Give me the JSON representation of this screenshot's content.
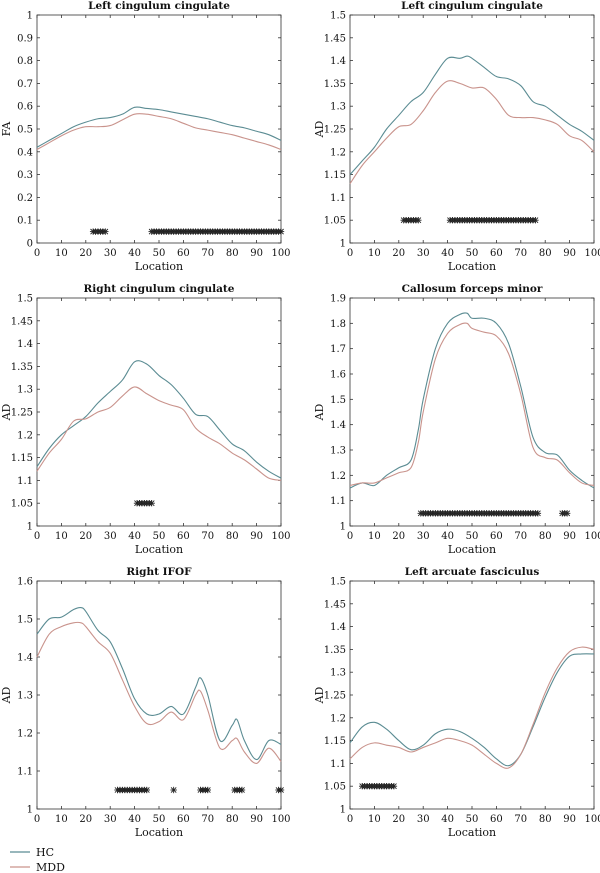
{
  "legend": [
    {
      "name": "HC",
      "color": "#5b8c93"
    },
    {
      "name": "MDD",
      "color": "#c9938c"
    }
  ],
  "chart_data": [
    {
      "type": "line",
      "title": "Left cingulum cingulate",
      "xlabel": "Location",
      "ylabel": "FA",
      "xlim": [
        0,
        100
      ],
      "ylim": [
        0,
        1
      ],
      "xticks": [
        0,
        10,
        20,
        30,
        40,
        50,
        60,
        70,
        80,
        90,
        100
      ],
      "yticks": [
        0,
        0.1,
        0.2,
        0.3,
        0.4,
        0.5,
        0.6,
        0.7,
        0.8,
        0.9,
        1
      ],
      "ytick_labels": [
        "0",
        "0.1",
        "0.2",
        "0.3",
        "0.4",
        "0.5",
        "0.6",
        "0.7",
        "0.8",
        "0.9",
        "1"
      ],
      "series": [
        {
          "name": "HC",
          "x": [
            0,
            5,
            10,
            15,
            20,
            25,
            30,
            35,
            40,
            45,
            50,
            55,
            60,
            65,
            70,
            75,
            80,
            85,
            90,
            95,
            100
          ],
          "y": [
            0.42,
            0.45,
            0.48,
            0.51,
            0.53,
            0.545,
            0.55,
            0.565,
            0.595,
            0.59,
            0.585,
            0.575,
            0.565,
            0.555,
            0.545,
            0.53,
            0.515,
            0.505,
            0.49,
            0.475,
            0.45
          ]
        },
        {
          "name": "MDD",
          "x": [
            0,
            5,
            10,
            15,
            20,
            25,
            30,
            35,
            40,
            45,
            50,
            55,
            60,
            65,
            70,
            75,
            80,
            85,
            90,
            95,
            100
          ],
          "y": [
            0.41,
            0.44,
            0.47,
            0.495,
            0.51,
            0.51,
            0.515,
            0.54,
            0.565,
            0.565,
            0.555,
            0.545,
            0.525,
            0.505,
            0.495,
            0.485,
            0.475,
            0.46,
            0.445,
            0.43,
            0.41
          ]
        }
      ],
      "significance": {
        "y": 0.05,
        "x": [
          23,
          24,
          25,
          26,
          27,
          28,
          47,
          48,
          49,
          50,
          51,
          52,
          53,
          54,
          55,
          56,
          57,
          58,
          59,
          60,
          61,
          62,
          63,
          64,
          65,
          66,
          67,
          68,
          69,
          70,
          71,
          72,
          73,
          74,
          75,
          76,
          77,
          78,
          79,
          80,
          81,
          82,
          83,
          84,
          85,
          86,
          87,
          88,
          89,
          90,
          91,
          92,
          93,
          94,
          95,
          96,
          97,
          98,
          99,
          100
        ]
      }
    },
    {
      "type": "line",
      "title": "Left cingulum cingulate",
      "xlabel": "Location",
      "ylabel": "AD",
      "xlim": [
        0,
        100
      ],
      "ylim": [
        1,
        1.5
      ],
      "xticks": [
        0,
        10,
        20,
        30,
        40,
        50,
        60,
        70,
        80,
        90,
        100
      ],
      "yticks": [
        1,
        1.05,
        1.1,
        1.15,
        1.2,
        1.25,
        1.3,
        1.35,
        1.4,
        1.45,
        1.5
      ],
      "ytick_labels": [
        "1",
        "1.05",
        "1.1",
        "1.15",
        "1.2",
        "1.25",
        "1.3",
        "1.35",
        "1.4",
        "1.45",
        "1.5"
      ],
      "series": [
        {
          "name": "HC",
          "x": [
            0,
            5,
            10,
            15,
            20,
            25,
            30,
            35,
            40,
            45,
            48,
            50,
            55,
            60,
            65,
            70,
            75,
            80,
            85,
            90,
            95,
            100
          ],
          "y": [
            1.15,
            1.18,
            1.21,
            1.25,
            1.28,
            1.31,
            1.33,
            1.37,
            1.405,
            1.405,
            1.41,
            1.405,
            1.385,
            1.365,
            1.36,
            1.345,
            1.31,
            1.3,
            1.28,
            1.26,
            1.245,
            1.225
          ]
        },
        {
          "name": "MDD",
          "x": [
            0,
            5,
            10,
            15,
            20,
            25,
            30,
            35,
            40,
            45,
            50,
            55,
            60,
            65,
            70,
            75,
            80,
            85,
            90,
            95,
            100
          ],
          "y": [
            1.13,
            1.17,
            1.2,
            1.23,
            1.255,
            1.26,
            1.29,
            1.33,
            1.355,
            1.35,
            1.34,
            1.34,
            1.315,
            1.28,
            1.275,
            1.275,
            1.27,
            1.26,
            1.235,
            1.225,
            1.2
          ]
        }
      ],
      "significance": {
        "y": 1.05,
        "x": [
          22,
          23,
          24,
          25,
          26,
          27,
          28,
          41,
          42,
          43,
          44,
          45,
          46,
          47,
          48,
          49,
          50,
          51,
          52,
          53,
          54,
          55,
          56,
          57,
          58,
          59,
          60,
          61,
          62,
          63,
          64,
          65,
          66,
          67,
          68,
          69,
          70,
          71,
          72,
          73,
          74,
          75,
          76
        ]
      }
    },
    {
      "type": "line",
      "title": "Right cingulum cingulate",
      "xlabel": "Location",
      "ylabel": "AD",
      "xlim": [
        0,
        100
      ],
      "ylim": [
        1,
        1.5
      ],
      "xticks": [
        0,
        10,
        20,
        30,
        40,
        50,
        60,
        70,
        80,
        90,
        100
      ],
      "yticks": [
        1,
        1.05,
        1.1,
        1.15,
        1.2,
        1.25,
        1.3,
        1.35,
        1.4,
        1.45,
        1.5
      ],
      "ytick_labels": [
        "1",
        "1.05",
        "1.1",
        "1.15",
        "1.2",
        "1.25",
        "1.3",
        "1.35",
        "1.4",
        "1.45",
        "1.5"
      ],
      "series": [
        {
          "name": "HC",
          "x": [
            0,
            5,
            10,
            15,
            20,
            25,
            30,
            35,
            40,
            45,
            50,
            55,
            60,
            65,
            70,
            75,
            80,
            85,
            90,
            95,
            100
          ],
          "y": [
            1.13,
            1.17,
            1.2,
            1.22,
            1.24,
            1.27,
            1.295,
            1.32,
            1.36,
            1.355,
            1.33,
            1.31,
            1.28,
            1.245,
            1.24,
            1.21,
            1.18,
            1.165,
            1.14,
            1.12,
            1.105
          ]
        },
        {
          "name": "MDD",
          "x": [
            0,
            5,
            10,
            15,
            20,
            25,
            30,
            35,
            40,
            45,
            50,
            55,
            60,
            65,
            70,
            75,
            80,
            85,
            90,
            95,
            100
          ],
          "y": [
            1.12,
            1.16,
            1.19,
            1.23,
            1.235,
            1.25,
            1.26,
            1.285,
            1.305,
            1.29,
            1.275,
            1.265,
            1.255,
            1.215,
            1.195,
            1.18,
            1.16,
            1.145,
            1.125,
            1.105,
            1.1
          ]
        }
      ],
      "significance": {
        "y": 1.05,
        "x": [
          41,
          42,
          43,
          44,
          45,
          46,
          47
        ]
      }
    },
    {
      "type": "line",
      "title": "Callosum forceps minor",
      "xlabel": "Location",
      "ylabel": "AD",
      "xlim": [
        0,
        100
      ],
      "ylim": [
        1,
        1.9
      ],
      "xticks": [
        0,
        10,
        20,
        30,
        40,
        50,
        60,
        70,
        80,
        90,
        100
      ],
      "yticks": [
        1,
        1.1,
        1.2,
        1.3,
        1.4,
        1.5,
        1.6,
        1.7,
        1.8,
        1.9
      ],
      "ytick_labels": [
        "1",
        "1.1",
        "1.2",
        "1.3",
        "1.4",
        "1.5",
        "1.6",
        "1.7",
        "1.8",
        "1.9"
      ],
      "series": [
        {
          "name": "HC",
          "x": [
            0,
            5,
            10,
            15,
            20,
            25,
            28,
            30,
            35,
            40,
            45,
            48,
            50,
            55,
            60,
            65,
            70,
            75,
            80,
            85,
            90,
            95,
            100
          ],
          "y": [
            1.15,
            1.17,
            1.16,
            1.2,
            1.23,
            1.26,
            1.38,
            1.5,
            1.7,
            1.8,
            1.835,
            1.84,
            1.82,
            1.82,
            1.8,
            1.72,
            1.55,
            1.35,
            1.29,
            1.28,
            1.22,
            1.18,
            1.15
          ]
        },
        {
          "name": "MDD",
          "x": [
            0,
            5,
            10,
            15,
            20,
            25,
            28,
            30,
            35,
            40,
            45,
            48,
            50,
            55,
            60,
            65,
            70,
            75,
            80,
            85,
            90,
            95,
            100
          ],
          "y": [
            1.16,
            1.17,
            1.17,
            1.19,
            1.21,
            1.23,
            1.33,
            1.45,
            1.66,
            1.76,
            1.795,
            1.8,
            1.78,
            1.765,
            1.75,
            1.68,
            1.52,
            1.31,
            1.27,
            1.26,
            1.21,
            1.17,
            1.16
          ]
        }
      ],
      "significance": {
        "y": 1.05,
        "x": [
          29,
          30,
          31,
          32,
          33,
          34,
          35,
          36,
          37,
          38,
          39,
          40,
          41,
          42,
          43,
          44,
          45,
          46,
          47,
          48,
          49,
          50,
          51,
          52,
          53,
          54,
          55,
          56,
          57,
          58,
          59,
          60,
          61,
          62,
          63,
          64,
          65,
          66,
          67,
          68,
          69,
          70,
          71,
          72,
          73,
          74,
          75,
          76,
          77,
          87,
          88,
          89
        ]
      }
    },
    {
      "type": "line",
      "title": "Right IFOF",
      "xlabel": "Location",
      "ylabel": "AD",
      "xlim": [
        0,
        100
      ],
      "ylim": [
        1,
        1.6
      ],
      "xticks": [
        0,
        10,
        20,
        30,
        40,
        50,
        60,
        70,
        80,
        90,
        100
      ],
      "yticks": [
        1,
        1.1,
        1.2,
        1.3,
        1.4,
        1.5,
        1.6
      ],
      "ytick_labels": [
        "1",
        "1.1",
        "1.2",
        "1.3",
        "1.4",
        "1.5",
        "1.6"
      ],
      "series": [
        {
          "name": "HC",
          "x": [
            0,
            5,
            10,
            15,
            18,
            20,
            25,
            30,
            35,
            40,
            45,
            50,
            55,
            60,
            65,
            67,
            70,
            75,
            80,
            82,
            85,
            90,
            95,
            100
          ],
          "y": [
            1.46,
            1.5,
            1.505,
            1.525,
            1.53,
            1.52,
            1.47,
            1.44,
            1.37,
            1.29,
            1.25,
            1.25,
            1.27,
            1.25,
            1.32,
            1.345,
            1.3,
            1.18,
            1.22,
            1.235,
            1.18,
            1.13,
            1.18,
            1.17
          ]
        },
        {
          "name": "MDD",
          "x": [
            0,
            5,
            10,
            15,
            18,
            20,
            25,
            30,
            35,
            40,
            45,
            50,
            55,
            60,
            65,
            67,
            70,
            75,
            80,
            82,
            85,
            90,
            95,
            100
          ],
          "y": [
            1.4,
            1.46,
            1.48,
            1.49,
            1.49,
            1.48,
            1.44,
            1.41,
            1.34,
            1.27,
            1.225,
            1.23,
            1.255,
            1.235,
            1.3,
            1.31,
            1.26,
            1.16,
            1.18,
            1.185,
            1.15,
            1.12,
            1.16,
            1.125
          ]
        }
      ],
      "significance": {
        "y": 1.05,
        "x": [
          33,
          34,
          35,
          36,
          37,
          38,
          39,
          40,
          41,
          42,
          43,
          44,
          45,
          56,
          67,
          68,
          69,
          70,
          81,
          82,
          83,
          84,
          99,
          100
        ]
      }
    },
    {
      "type": "line",
      "title": "Left arcuate fasciculus",
      "xlabel": "Location",
      "ylabel": "AD",
      "xlim": [
        0,
        100
      ],
      "ylim": [
        1,
        1.5
      ],
      "xticks": [
        0,
        10,
        20,
        30,
        40,
        50,
        60,
        70,
        80,
        90,
        100
      ],
      "yticks": [
        1,
        1.05,
        1.1,
        1.15,
        1.2,
        1.25,
        1.3,
        1.35,
        1.4,
        1.45,
        1.5
      ],
      "ytick_labels": [
        "1",
        "1.05",
        "1.1",
        "1.15",
        "1.2",
        "1.25",
        "1.3",
        "1.35",
        "1.4",
        "1.45",
        "1.5"
      ],
      "series": [
        {
          "name": "HC",
          "x": [
            0,
            5,
            10,
            15,
            20,
            25,
            30,
            35,
            40,
            45,
            50,
            55,
            60,
            65,
            70,
            75,
            80,
            85,
            90,
            95,
            100
          ],
          "y": [
            1.145,
            1.18,
            1.19,
            1.175,
            1.15,
            1.13,
            1.14,
            1.165,
            1.175,
            1.17,
            1.155,
            1.135,
            1.11,
            1.095,
            1.12,
            1.18,
            1.245,
            1.3,
            1.335,
            1.34,
            1.34
          ]
        },
        {
          "name": "MDD",
          "x": [
            0,
            5,
            10,
            15,
            20,
            25,
            30,
            35,
            40,
            45,
            50,
            55,
            60,
            65,
            70,
            75,
            80,
            85,
            90,
            95,
            100
          ],
          "y": [
            1.11,
            1.135,
            1.145,
            1.14,
            1.135,
            1.125,
            1.135,
            1.145,
            1.155,
            1.15,
            1.14,
            1.12,
            1.1,
            1.09,
            1.12,
            1.185,
            1.255,
            1.31,
            1.345,
            1.355,
            1.35
          ]
        }
      ],
      "significance": {
        "y": 1.05,
        "x": [
          5,
          6,
          7,
          8,
          9,
          10,
          11,
          12,
          13,
          14,
          15,
          16,
          17,
          18
        ]
      }
    }
  ]
}
